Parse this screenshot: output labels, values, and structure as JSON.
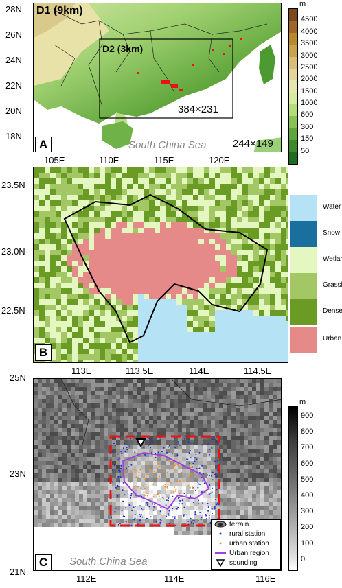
{
  "panelA": {
    "letter": "A",
    "d1_label": "D1 (9km)",
    "d2_label": "D2 (3km)",
    "d2_size": "384×231",
    "d1_size": "244×149",
    "sea_label": "South China Sea",
    "lat_ticks": [
      "28N",
      "26N",
      "24N",
      "22N",
      "20N",
      "18N"
    ],
    "lon_ticks": [
      "105E",
      "110E",
      "115E",
      "120E"
    ],
    "colorbar_unit": "m",
    "colorbar_ticks": [
      "4500",
      "4000",
      "3500",
      "3000",
      "2500",
      "2000",
      "1500",
      "1000",
      "600",
      "300",
      "150",
      "50"
    ],
    "colorbar_colors": [
      "#7a4a1e",
      "#a0652a",
      "#b8882f",
      "#c8a24d",
      "#d6bd78",
      "#e2d49a",
      "#e8e6b0",
      "#d6ec9c",
      "#b4dc78",
      "#88c254",
      "#5ea53a",
      "#3c8a2a",
      "#1f6b1f"
    ]
  },
  "panelB": {
    "letter": "B",
    "lat_ticks": [
      "23.5N",
      "23.0N",
      "22.5N"
    ],
    "lon_ticks": [
      "113E",
      "113.5E",
      "114E",
      "114.5E"
    ],
    "legend": [
      {
        "label": "Water",
        "color": "#b5e2f5"
      },
      {
        "label": "Snow ice",
        "color": "#1a6f9e"
      },
      {
        "label": "Wetlands",
        "color": "#e4f7c0"
      },
      {
        "label": "Grassland",
        "color": "#a3c765"
      },
      {
        "label": "Dense Tree",
        "color": "#6a9b24"
      },
      {
        "label": "Urban",
        "color": "#e58a88"
      }
    ]
  },
  "panelC": {
    "letter": "C",
    "sea_label": "South China Sea",
    "lat_ticks": [
      "25N",
      "23N",
      "21N"
    ],
    "lon_ticks": [
      "112E",
      "114E",
      "116E"
    ],
    "colorbar_unit": "m",
    "colorbar_ticks": [
      "900",
      "800",
      "700",
      "600",
      "500",
      "400",
      "300",
      "200",
      "100",
      "0"
    ],
    "legend": [
      {
        "label": "terrain",
        "symbol": "terrain-icon"
      },
      {
        "label": "rural station",
        "symbol": "rural-dot",
        "color": "#1f2fd0"
      },
      {
        "label": "urban station",
        "symbol": "urban-dot",
        "color": "#f08a1c"
      },
      {
        "label": "Urban region",
        "symbol": "urban-line",
        "color": "#a040e0"
      },
      {
        "label": "sounding",
        "symbol": "sounding-triangle"
      }
    ]
  }
}
